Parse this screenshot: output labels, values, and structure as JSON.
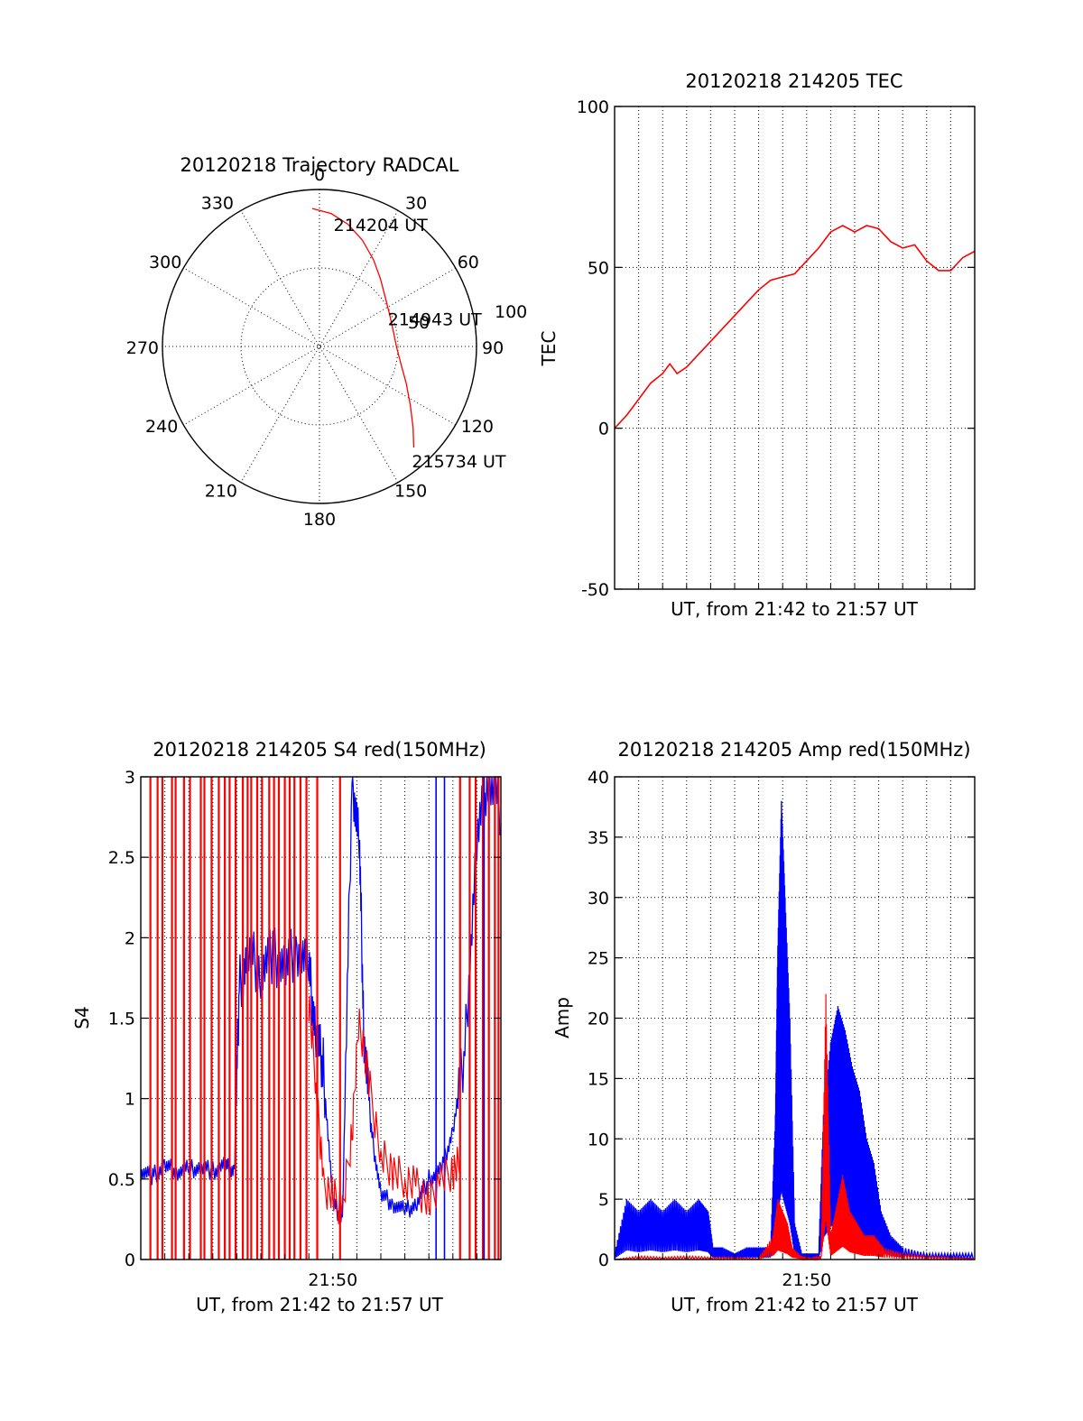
{
  "chart_data": [
    {
      "id": "trajectory",
      "type": "polar",
      "title": "20120218 Trajectory RADCAL",
      "angle_labels": [
        "0",
        "30",
        "60",
        "90",
        "120",
        "150",
        "180",
        "210",
        "240",
        "270",
        "300",
        "330"
      ],
      "radius_label": "100",
      "radius_label_mid": "50",
      "rmax": 100,
      "series": [
        {
          "color": "#ff0000",
          "points": [
            {
              "az": -3,
              "r": 88
            },
            {
              "az": 5,
              "r": 85
            },
            {
              "az": 13,
              "r": 80
            },
            {
              "az": 22,
              "r": 73
            },
            {
              "az": 32,
              "r": 65
            },
            {
              "az": 42,
              "r": 58
            },
            {
              "az": 54,
              "r": 52
            },
            {
              "az": 66,
              "r": 49
            },
            {
              "az": 78,
              "r": 48
            },
            {
              "az": 90,
              "r": 49
            },
            {
              "az": 102,
              "r": 53
            },
            {
              "az": 113,
              "r": 60
            },
            {
              "az": 123,
              "r": 69
            },
            {
              "az": 131,
              "r": 79
            },
            {
              "az": 137,
              "r": 88
            }
          ]
        }
      ],
      "annotations": [
        {
          "text": "214204 UT",
          "az": 13,
          "r": 86
        },
        {
          "text": "214943 UT",
          "az": 78,
          "r": 48
        },
        {
          "text": "215734 UT",
          "az": 137,
          "r": 88
        }
      ]
    },
    {
      "id": "tec",
      "type": "line",
      "title": "20120218 214205 TEC",
      "xlabel": "UT, from 21:42 to 21:57 UT",
      "ylabel": "TEC",
      "ylim": [
        -50,
        100
      ],
      "yticks": [
        "100",
        "50",
        "0",
        "-50"
      ],
      "xlim": [
        0,
        15
      ],
      "series": [
        {
          "color": "#ff0000",
          "x": [
            0,
            0.5,
            1,
            1.5,
            2,
            2.3,
            2.6,
            3,
            3.5,
            4,
            4.5,
            5,
            5.5,
            6,
            6.5,
            7,
            7.5,
            8,
            8.5,
            9,
            9.5,
            10,
            10.5,
            11,
            11.5,
            12,
            12.5,
            13,
            13.5,
            14,
            14.5,
            15
          ],
          "y": [
            0,
            4,
            9,
            14,
            17,
            20,
            17,
            19,
            23,
            27,
            31,
            35,
            39,
            43,
            46,
            47,
            48,
            52,
            56,
            61,
            63,
            61,
            63,
            62,
            58,
            56,
            57,
            52,
            49,
            49,
            53,
            55
          ]
        }
      ]
    },
    {
      "id": "s4",
      "type": "line",
      "title": "20120218 214205 S4 red(150MHz)",
      "xlabel": "UT, from 21:42 to 21:57 UT",
      "ylabel": "S4",
      "ylim": [
        0,
        3
      ],
      "yticks": [
        "3",
        "2.5",
        "2",
        "1.5",
        "1",
        "0.5",
        "0"
      ],
      "xtick_label": "21:50",
      "xtick_value": 8,
      "xlim": [
        0,
        15
      ],
      "series": [
        {
          "color": "#0000ff",
          "x": [
            0,
            0.5,
            1,
            1.5,
            2,
            2.5,
            3,
            3.5,
            3.9,
            4.1,
            4.5,
            5,
            5.5,
            6,
            6.5,
            7,
            7.3,
            7.6,
            8.0,
            8.4,
            8.8,
            9.1,
            9.3,
            9.6,
            10,
            10.5,
            11,
            11.5,
            12,
            12.5,
            13,
            13.5,
            14,
            14.5,
            15
          ],
          "y": [
            0.55,
            0.52,
            0.58,
            0.55,
            0.56,
            0.57,
            0.55,
            0.58,
            0.55,
            1.7,
            1.9,
            1.8,
            1.9,
            1.8,
            1.95,
            1.8,
            1.4,
            1.2,
            0.35,
            0.25,
            3.0,
            2.6,
            1.4,
            0.8,
            0.4,
            0.35,
            0.3,
            0.35,
            0.5,
            0.55,
            0.8,
            1.3,
            2.6,
            3.0,
            2.8
          ]
        },
        {
          "color": "#ff0000",
          "x": [
            7.0,
            7.3,
            7.6,
            8.0,
            8.4,
            8.8,
            9.1,
            9.5,
            10,
            10.5,
            11,
            11.5,
            12,
            12.5,
            13,
            13.3
          ],
          "y": [
            1.6,
            1.1,
            0.45,
            0.4,
            0.3,
            0.8,
            1.5,
            1.1,
            0.65,
            0.55,
            0.5,
            0.45,
            0.35,
            0.5,
            0.55,
            0.6
          ]
        }
      ],
      "spikes": {
        "color": "#ff0000",
        "x": [
          0.4,
          0.7,
          0.9,
          1.3,
          1.45,
          1.8,
          2.05,
          2.5,
          2.65,
          2.95,
          3.25,
          3.5,
          3.7,
          3.95,
          4.25,
          4.45,
          4.6,
          4.85,
          5.05,
          5.35,
          5.55,
          5.75,
          6.0,
          6.2,
          6.4,
          6.65,
          6.9,
          7.35,
          8.3,
          13.3,
          13.7,
          13.95,
          14.25,
          14.5,
          14.75,
          14.9
        ],
        "y_to": 3
      },
      "blue_spikes": {
        "color": "#0000ff",
        "x": [
          12.3,
          12.65,
          14.3
        ],
        "y_to": 3
      }
    },
    {
      "id": "amp",
      "type": "line",
      "title": "20120218 214205 Amp red(150MHz)",
      "xlabel": "UT, from 21:42 to 21:57 UT",
      "ylabel": "Amp",
      "ylim": [
        0,
        40
      ],
      "yticks": [
        "40",
        "35",
        "30",
        "25",
        "20",
        "15",
        "10",
        "5",
        "0"
      ],
      "xtick_label": "21:50",
      "xtick_value": 8,
      "xlim": [
        0,
        15
      ],
      "series": [
        {
          "color": "#0000ff",
          "x": [
            0,
            0.5,
            1,
            1.5,
            2,
            2.5,
            3,
            3.5,
            3.9,
            4.1,
            4.5,
            5,
            5.5,
            6,
            6.5,
            6.7,
            6.8,
            6.95,
            7.1,
            7.3,
            7.5,
            7.8,
            8.2,
            8.5,
            8.7,
            9.0,
            9.3,
            9.6,
            9.9,
            10.2,
            10.5,
            10.8,
            11.1,
            11.5,
            12,
            13,
            14,
            15
          ],
          "y": [
            0.5,
            5,
            4,
            5,
            4,
            5,
            4,
            5,
            4,
            1,
            1,
            0.5,
            1,
            1,
            1,
            12,
            26,
            38,
            30,
            20,
            3,
            0.5,
            0.5,
            0.5,
            12,
            18,
            21,
            19,
            16,
            14,
            10,
            8,
            4,
            2,
            1,
            0.5,
            0.5,
            0.5
          ]
        },
        {
          "color": "#ff0000",
          "x": [
            0,
            1,
            2,
            3,
            4,
            5,
            6,
            6.6,
            6.8,
            7.0,
            7.2,
            7.4,
            7.8,
            8.2,
            8.6,
            8.8,
            9.0,
            9.2,
            9.5,
            9.8,
            10.1,
            10.4,
            10.8,
            11.2,
            12,
            13,
            14,
            15
          ],
          "y": [
            0,
            0.3,
            0.2,
            0.3,
            0.2,
            0.2,
            0.1,
            2,
            5,
            4,
            3,
            1,
            0.2,
            0.1,
            0.3,
            22,
            2,
            4,
            7,
            4,
            3,
            2,
            2,
            1,
            0.5,
            0.3,
            0.2,
            0.1
          ]
        }
      ]
    }
  ]
}
